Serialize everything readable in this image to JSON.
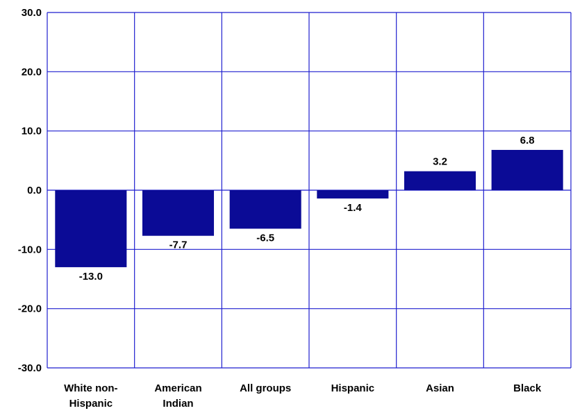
{
  "chart_data": {
    "type": "bar",
    "title": "",
    "xlabel": "",
    "ylabel": "",
    "categories": [
      [
        "White non-",
        "Hispanic"
      ],
      [
        "American",
        "Indian"
      ],
      [
        "All groups"
      ],
      [
        "Hispanic"
      ],
      [
        "Asian"
      ],
      [
        "Black"
      ]
    ],
    "values": [
      -13.0,
      -7.7,
      -6.5,
      -1.4,
      3.2,
      6.8
    ],
    "value_labels": [
      "-13.0",
      "-7.7",
      "-6.5",
      "-1.4",
      "3.2",
      "6.8"
    ],
    "ylim": [
      -30,
      30
    ],
    "yticks": [
      30,
      20,
      10,
      0,
      -10,
      -20,
      -30
    ],
    "ytick_labels": [
      "30.0",
      "20.0",
      "10.0",
      "0.0",
      "-10.0",
      "-20.0",
      "-30.0"
    ],
    "grid": true,
    "legend": "none",
    "bar_color": "#0B0B96",
    "grid_color": "#1F1FCF"
  }
}
